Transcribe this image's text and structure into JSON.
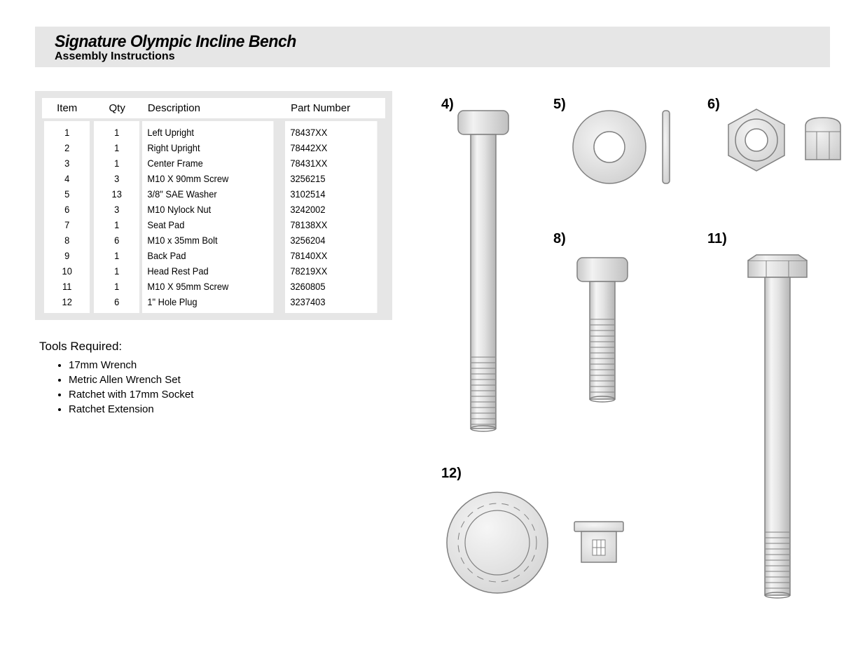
{
  "header": {
    "product_title": "Signature Olympic Incline Bench",
    "subtitle": "Assembly Instructions"
  },
  "parts_table": {
    "columns": [
      "Item",
      "Qty",
      "Description",
      "Part Number"
    ],
    "rows": [
      [
        "1",
        "1",
        "Left Upright",
        "78437XX"
      ],
      [
        "2",
        "1",
        "Right Upright",
        "78442XX"
      ],
      [
        "3",
        "1",
        "Center Frame",
        "78431XX"
      ],
      [
        "4",
        "3",
        "M10 X 90mm Screw",
        "3256215"
      ],
      [
        "5",
        "13",
        "3/8\" SAE Washer",
        "3102514"
      ],
      [
        "6",
        "3",
        "M10 Nylock Nut",
        "3242002"
      ],
      [
        "7",
        "1",
        "Seat Pad",
        "78138XX"
      ],
      [
        "8",
        "6",
        "M10 x 35mm Bolt",
        "3256204"
      ],
      [
        "9",
        "1",
        "Back Pad",
        "78140XX"
      ],
      [
        "10",
        "1",
        "Head Rest Pad",
        "78219XX"
      ],
      [
        "11",
        "1",
        "M10 X 95mm Screw",
        "3260805"
      ],
      [
        "12",
        "6",
        "1\" Hole Plug",
        "3237403"
      ]
    ]
  },
  "tools": {
    "heading": "Tools Required:",
    "items": [
      "17mm Wrench",
      "Metric Allen Wrench Set",
      "Ratchet with 17mm Socket",
      "Ratchet Extension"
    ]
  },
  "hardware_labels": {
    "l4": "4)",
    "l5": "5)",
    "l6": "6)",
    "l8": "8)",
    "l11": "11)",
    "l12": "12)"
  },
  "colors": {
    "header_bg": "#e6e6e6",
    "stroke": "#808080",
    "fill_light": "#e8e8e8",
    "fill_mid": "#d0d0d0",
    "fill_white": "#ffffff"
  }
}
